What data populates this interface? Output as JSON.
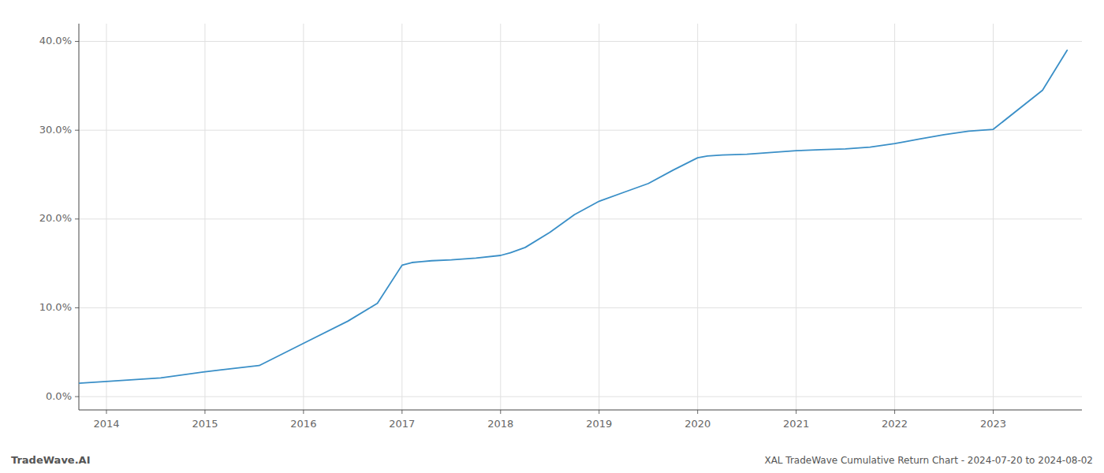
{
  "chart_data": {
    "type": "line",
    "title": "XAL TradeWave Cumulative Return Chart - 2024-07-20 to 2024-08-02",
    "annotations": [
      "TradeWave.AI"
    ],
    "x": [
      2013.72,
      2014.0,
      2014.55,
      2015.0,
      2015.15,
      2015.55,
      2016.0,
      2016.45,
      2016.75,
      2017.0,
      2017.1,
      2017.2,
      2017.3,
      2017.5,
      2017.75,
      2018.0,
      2018.1,
      2018.25,
      2018.5,
      2018.75,
      2019.0,
      2019.25,
      2019.5,
      2019.75,
      2020.0,
      2020.1,
      2020.25,
      2020.5,
      2020.75,
      2021.0,
      2021.25,
      2021.5,
      2021.75,
      2022.0,
      2022.1,
      2022.25,
      2022.5,
      2022.75,
      2023.0,
      2023.5,
      2023.75
    ],
    "values": [
      1.5,
      1.7,
      2.1,
      2.8,
      3.0,
      3.5,
      6.0,
      8.5,
      10.5,
      14.8,
      15.1,
      15.2,
      15.3,
      15.4,
      15.6,
      15.9,
      16.2,
      16.8,
      18.5,
      20.5,
      22.0,
      23.0,
      24.0,
      25.5,
      26.9,
      27.1,
      27.2,
      27.3,
      27.5,
      27.7,
      27.8,
      27.9,
      28.1,
      28.5,
      28.7,
      29.0,
      29.5,
      29.9,
      30.1,
      34.5,
      39.0
    ],
    "color": "#3a8fc7",
    "xlim": [
      2013.72,
      2023.9
    ],
    "ylim": [
      -1.5,
      42.0
    ],
    "xticks": [
      2014,
      2015,
      2016,
      2017,
      2018,
      2019,
      2020,
      2021,
      2022,
      2023
    ],
    "yticks": [
      {
        "value": 0.0,
        "label": "0.0%"
      },
      {
        "value": 10.0,
        "label": "10.0%"
      },
      {
        "value": 20.0,
        "label": "20.0%"
      },
      {
        "value": 30.0,
        "label": "30.0%"
      },
      {
        "value": 40.0,
        "label": "40.0%"
      }
    ],
    "grid": true
  }
}
